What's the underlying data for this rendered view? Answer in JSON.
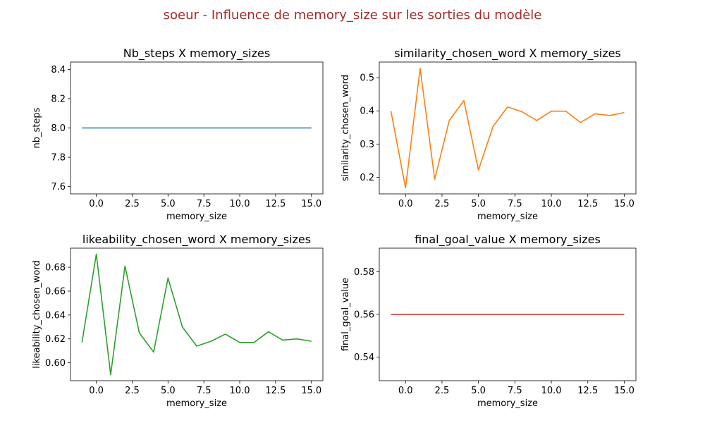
{
  "figure": {
    "suptitle": "soeur - Influence de memory_size sur les sorties du modèle",
    "suptitle_color": "#a52a2a"
  },
  "chart_data": [
    {
      "type": "line",
      "title": "Nb_steps X memory_sizes",
      "xlabel": "memory_size",
      "ylabel": "nb_steps",
      "color": "#1f77b4",
      "x": [
        -1,
        0,
        1,
        2,
        3,
        4,
        5,
        6,
        7,
        8,
        9,
        10,
        11,
        12,
        13,
        14,
        15
      ],
      "y": [
        8,
        8,
        8,
        8,
        8,
        8,
        8,
        8,
        8,
        8,
        8,
        8,
        8,
        8,
        8,
        8,
        8
      ],
      "xlim": [
        -1.8,
        15.8
      ],
      "ylim": [
        7.55,
        8.45
      ],
      "xticks": [
        0,
        2.5,
        5,
        7.5,
        10,
        12.5,
        15
      ],
      "xtick_labels": [
        "0.0",
        "2.5",
        "5.0",
        "7.5",
        "10.0",
        "12.5",
        "15.0"
      ],
      "yticks": [
        7.6,
        7.8,
        8.0,
        8.2,
        8.4
      ],
      "ytick_labels": [
        "7.6",
        "7.8",
        "8.0",
        "8.2",
        "8.4"
      ]
    },
    {
      "type": "line",
      "title": "similarity_chosen_word X memory_sizes",
      "xlabel": "memory_size",
      "ylabel": "similarity_chosen_word",
      "color": "#ff7f0e",
      "x": [
        -1,
        0,
        1,
        2,
        3,
        4,
        5,
        6,
        7,
        8,
        9,
        10,
        11,
        12,
        13,
        14,
        15
      ],
      "y": [
        0.399,
        0.168,
        0.528,
        0.194,
        0.371,
        0.431,
        0.222,
        0.353,
        0.412,
        0.397,
        0.371,
        0.399,
        0.399,
        0.365,
        0.391,
        0.386,
        0.395
      ],
      "xlim": [
        -1.8,
        15.8
      ],
      "ylim": [
        0.15,
        0.547
      ],
      "xticks": [
        0,
        2.5,
        5,
        7.5,
        10,
        12.5,
        15
      ],
      "xtick_labels": [
        "0.0",
        "2.5",
        "5.0",
        "7.5",
        "10.0",
        "12.5",
        "15.0"
      ],
      "yticks": [
        0.2,
        0.3,
        0.4,
        0.5
      ],
      "ytick_labels": [
        "0.2",
        "0.3",
        "0.4",
        "0.5"
      ]
    },
    {
      "type": "line",
      "title": "likeability_chosen_word X memory_sizes",
      "xlabel": "memory_size",
      "ylabel": "likeability_chosen_word",
      "color": "#2ca02c",
      "x": [
        -1,
        0,
        1,
        2,
        3,
        4,
        5,
        6,
        7,
        8,
        9,
        10,
        11,
        12,
        13,
        14,
        15
      ],
      "y": [
        0.617,
        0.691,
        0.59,
        0.681,
        0.625,
        0.609,
        0.671,
        0.63,
        0.614,
        0.618,
        0.624,
        0.617,
        0.617,
        0.626,
        0.619,
        0.62,
        0.618
      ],
      "xlim": [
        -1.8,
        15.8
      ],
      "ylim": [
        0.585,
        0.696
      ],
      "xticks": [
        0,
        2.5,
        5,
        7.5,
        10,
        12.5,
        15
      ],
      "xtick_labels": [
        "0.0",
        "2.5",
        "5.0",
        "7.5",
        "10.0",
        "12.5",
        "15.0"
      ],
      "yticks": [
        0.6,
        0.62,
        0.64,
        0.66,
        0.68
      ],
      "ytick_labels": [
        "0.60",
        "0.62",
        "0.64",
        "0.66",
        "0.68"
      ]
    },
    {
      "type": "line",
      "title": "final_goal_value X memory_sizes",
      "xlabel": "memory_size",
      "ylabel": "final_goal_value",
      "color": "#d62728",
      "x": [
        -1,
        0,
        1,
        2,
        3,
        4,
        5,
        6,
        7,
        8,
        9,
        10,
        11,
        12,
        13,
        14,
        15
      ],
      "y": [
        0.56,
        0.56,
        0.56,
        0.56,
        0.56,
        0.56,
        0.56,
        0.56,
        0.56,
        0.56,
        0.56,
        0.56,
        0.56,
        0.56,
        0.56,
        0.56,
        0.56
      ],
      "xlim": [
        -1.8,
        15.8
      ],
      "ylim": [
        0.529,
        0.591
      ],
      "xticks": [
        0,
        2.5,
        5,
        7.5,
        10,
        12.5,
        15
      ],
      "xtick_labels": [
        "0.0",
        "2.5",
        "5.0",
        "7.5",
        "10.0",
        "12.5",
        "15.0"
      ],
      "yticks": [
        0.54,
        0.56,
        0.58
      ],
      "ytick_labels": [
        "0.54",
        "0.56",
        "0.58"
      ]
    }
  ]
}
